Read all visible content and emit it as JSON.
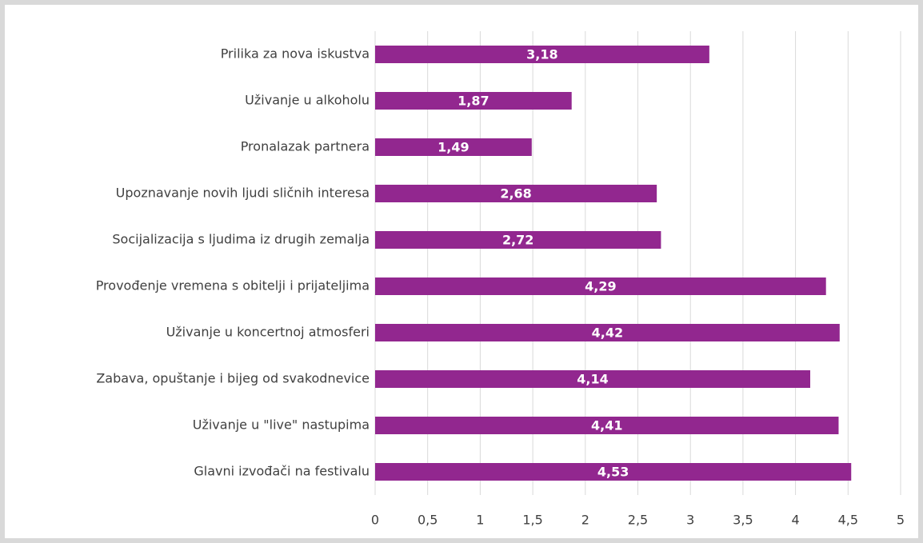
{
  "chart_data": {
    "type": "bar",
    "orientation": "horizontal",
    "categories": [
      "Prilika za nova iskustva",
      "Uživanje u alkoholu",
      "Pronalazak partnera",
      "Upoznavanje novih ljudi sličnih interesa",
      "Socijalizacija s ljudima iz drugih zemalja",
      "Provođenje vremena s obitelji i prijateljima",
      "Uživanje u koncertnoj atmosferi",
      "Zabava, opuštanje i bijeg od svakodnevice",
      "Uživanje u \"live\" nastupima",
      "Glavni izvođači na festivalu"
    ],
    "values": [
      3.18,
      1.87,
      1.49,
      2.68,
      2.72,
      4.29,
      4.42,
      4.14,
      4.41,
      4.53
    ],
    "value_labels": [
      "3,18",
      "1,87",
      "1,49",
      "2,68",
      "2,72",
      "4,29",
      "4,42",
      "4,14",
      "4,41",
      "4,53"
    ],
    "color": "#92278f",
    "xlim": [
      0,
      5
    ],
    "xticks": [
      0,
      {
        "value": 0.5,
        "label": "0,5"
      },
      1,
      {
        "value": 1.5,
        "label": "1,5"
      },
      2,
      {
        "value": 2.5,
        "label": "2,5"
      },
      3,
      {
        "value": 3.5,
        "label": "3,5"
      },
      4,
      {
        "value": 4.5,
        "label": "4,5"
      },
      5
    ],
    "grid": true
  }
}
